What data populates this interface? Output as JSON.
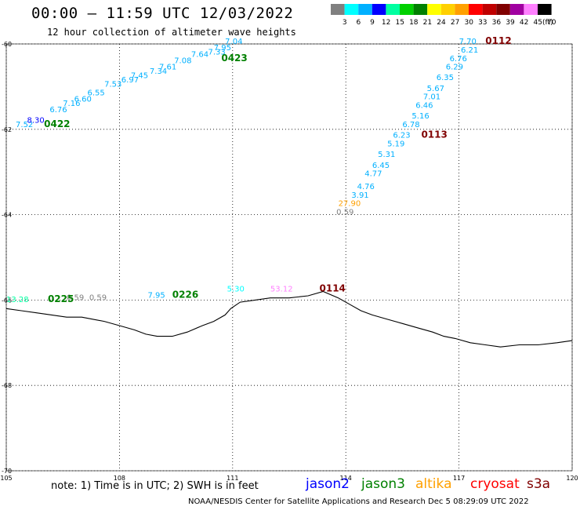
{
  "title": "00:00 – 11:59 UTC 12/03/2022",
  "subtitle": "12 hour collection of altimeter wave heights",
  "legend": {
    "unit": "(ft)",
    "labels": [
      "3",
      "6",
      "9",
      "12",
      "15",
      "18",
      "21",
      "24",
      "27",
      "30",
      "33",
      "36",
      "39",
      "42",
      "45",
      "70"
    ],
    "colors": [
      "#808080",
      "#00ffff",
      "#00b0ff",
      "#0000ff",
      "#00ffa0",
      "#00d000",
      "#008000",
      "#ffff00",
      "#ffd000",
      "#ffa000",
      "#ff0000",
      "#c00000",
      "#800000",
      "#a000a0",
      "#ff80ff",
      "#000000"
    ]
  },
  "map": {
    "lon_range": [
      105,
      120
    ],
    "lat_range": [
      -70,
      -60
    ],
    "lon_ticks": [
      "105",
      "108",
      "111",
      "114",
      "117",
      "120"
    ],
    "lat_ticks": [
      "-60",
      "-62",
      "-64",
      "-66",
      "-68",
      "-70"
    ],
    "grid": "dotted"
  },
  "observations": [
    {
      "text": "7.52",
      "color": "#00b0ff",
      "lon": 105.25,
      "lat": -61.95
    },
    {
      "text": "8.30",
      "color": "#0000ff",
      "lon": 105.55,
      "lat": -61.85
    },
    {
      "text": "6.76",
      "color": "#00b0ff",
      "lon": 106.15,
      "lat": -61.6
    },
    {
      "text": "7.16",
      "color": "#00b0ff",
      "lon": 106.5,
      "lat": -61.45
    },
    {
      "text": "6.60",
      "color": "#00b0ff",
      "lon": 106.8,
      "lat": -61.35
    },
    {
      "text": "6.55",
      "color": "#00b0ff",
      "lon": 107.15,
      "lat": -61.2
    },
    {
      "text": "7.53",
      "color": "#00b0ff",
      "lon": 107.6,
      "lat": -61.0
    },
    {
      "text": "6.97",
      "color": "#00b0ff",
      "lon": 108.05,
      "lat": -60.9
    },
    {
      "text": "7.45",
      "color": "#00b0ff",
      "lon": 108.3,
      "lat": -60.8
    },
    {
      "text": "7.34",
      "color": "#00b0ff",
      "lon": 108.8,
      "lat": -60.7
    },
    {
      "text": "7.61",
      "color": "#00b0ff",
      "lon": 109.05,
      "lat": -60.6
    },
    {
      "text": "7.08",
      "color": "#00b0ff",
      "lon": 109.45,
      "lat": -60.45
    },
    {
      "text": "7.64",
      "color": "#00b0ff",
      "lon": 109.9,
      "lat": -60.3
    },
    {
      "text": "7.33",
      "color": "#00b0ff",
      "lon": 110.35,
      "lat": -60.25
    },
    {
      "text": "7.95",
      "color": "#00b0ff",
      "lon": 110.5,
      "lat": -60.15
    },
    {
      "text": "7.04",
      "color": "#00b0ff",
      "lon": 110.8,
      "lat": -60.0
    },
    {
      "text": "7.70",
      "color": "#00b0ff",
      "lon": 117.0,
      "lat": -60.0
    },
    {
      "text": "6.21",
      "color": "#00b0ff",
      "lon": 117.05,
      "lat": -60.2
    },
    {
      "text": "6.76",
      "color": "#00b0ff",
      "lon": 116.75,
      "lat": -60.4
    },
    {
      "text": "6.29",
      "color": "#00b0ff",
      "lon": 116.65,
      "lat": -60.6
    },
    {
      "text": "6.35",
      "color": "#00b0ff",
      "lon": 116.4,
      "lat": -60.85
    },
    {
      "text": "5.67",
      "color": "#00b0ff",
      "lon": 116.15,
      "lat": -61.1
    },
    {
      "text": "7.01",
      "color": "#00b0ff",
      "lon": 116.05,
      "lat": -61.3
    },
    {
      "text": "6.46",
      "color": "#00b0ff",
      "lon": 115.85,
      "lat": -61.5
    },
    {
      "text": "5.16",
      "color": "#00b0ff",
      "lon": 115.75,
      "lat": -61.75
    },
    {
      "text": "6.78",
      "color": "#00b0ff",
      "lon": 115.5,
      "lat": -61.95
    },
    {
      "text": "6.23",
      "color": "#00b0ff",
      "lon": 115.25,
      "lat": -62.2
    },
    {
      "text": "5.19",
      "color": "#00b0ff",
      "lon": 115.1,
      "lat": -62.4
    },
    {
      "text": "5.31",
      "color": "#00b0ff",
      "lon": 114.85,
      "lat": -62.65
    },
    {
      "text": "6.45",
      "color": "#00b0ff",
      "lon": 114.7,
      "lat": -62.9
    },
    {
      "text": "4.77",
      "color": "#00b0ff",
      "lon": 114.5,
      "lat": -63.1
    },
    {
      "text": "4.76",
      "color": "#00b0ff",
      "lon": 114.3,
      "lat": -63.4
    },
    {
      "text": "3.91",
      "color": "#00b0ff",
      "lon": 114.15,
      "lat": -63.6
    },
    {
      "text": "27.90",
      "color": "#ffa000",
      "lon": 113.8,
      "lat": -63.8
    },
    {
      "text": "0.59",
      "color": "#808080",
      "lon": 113.75,
      "lat": -64.0
    },
    {
      "text": "13.28",
      "color": "#00ffa0",
      "lon": 105.0,
      "lat": -66.05
    },
    {
      "text": "0.59",
      "color": "#808080",
      "lon": 106.6,
      "lat": -66.0
    },
    {
      "text": "0.59",
      "color": "#808080",
      "lon": 107.2,
      "lat": -66.0
    },
    {
      "text": "7.95",
      "color": "#00b0ff",
      "lon": 108.75,
      "lat": -65.95
    },
    {
      "text": "5.30",
      "color": "#00ffff",
      "lon": 110.85,
      "lat": -65.8
    },
    {
      "text": "53.12",
      "color": "#ff80ff",
      "lon": 112.0,
      "lat": -65.8
    }
  ],
  "passes": [
    {
      "text": "0422",
      "color": "#008000",
      "lon": 106.0,
      "lat": -61.95
    },
    {
      "text": "0423",
      "color": "#008000",
      "lon": 110.7,
      "lat": -60.4
    },
    {
      "text": "0112",
      "color": "#800000",
      "lon": 117.7,
      "lat": -60.0
    },
    {
      "text": "0113",
      "color": "#800000",
      "lon": 116.0,
      "lat": -62.2
    },
    {
      "text": "0225",
      "color": "#008000",
      "lon": 106.1,
      "lat": -66.05
    },
    {
      "text": "0226",
      "color": "#008000",
      "lon": 109.4,
      "lat": -65.95
    },
    {
      "text": "0114",
      "color": "#800000",
      "lon": 113.3,
      "lat": -65.8
    }
  ],
  "coastline": [
    [
      105.0,
      -66.2
    ],
    [
      105.4,
      -66.25
    ],
    [
      105.8,
      -66.3
    ],
    [
      106.2,
      -66.35
    ],
    [
      106.6,
      -66.4
    ],
    [
      107.0,
      -66.4
    ],
    [
      107.3,
      -66.45
    ],
    [
      107.6,
      -66.5
    ],
    [
      108.0,
      -66.6
    ],
    [
      108.4,
      -66.7
    ],
    [
      108.7,
      -66.8
    ],
    [
      109.0,
      -66.85
    ],
    [
      109.4,
      -66.85
    ],
    [
      109.8,
      -66.75
    ],
    [
      110.2,
      -66.6
    ],
    [
      110.5,
      -66.5
    ],
    [
      110.8,
      -66.35
    ],
    [
      110.95,
      -66.2
    ],
    [
      111.2,
      -66.05
    ],
    [
      111.6,
      -66.0
    ],
    [
      112.0,
      -65.95
    ],
    [
      112.5,
      -65.95
    ],
    [
      113.0,
      -65.9
    ],
    [
      113.4,
      -65.8
    ],
    [
      113.8,
      -65.95
    ],
    [
      114.1,
      -66.1
    ],
    [
      114.4,
      -66.25
    ],
    [
      114.7,
      -66.35
    ],
    [
      115.1,
      -66.45
    ],
    [
      115.5,
      -66.55
    ],
    [
      115.9,
      -66.65
    ],
    [
      116.3,
      -66.75
    ],
    [
      116.6,
      -66.85
    ],
    [
      116.9,
      -66.9
    ],
    [
      117.3,
      -67.0
    ],
    [
      117.7,
      -67.05
    ],
    [
      118.1,
      -67.1
    ],
    [
      118.6,
      -67.05
    ],
    [
      119.1,
      -67.05
    ],
    [
      119.6,
      -67.0
    ],
    [
      120.0,
      -66.95
    ]
  ],
  "satellites": [
    {
      "name": "jason2",
      "color": "#0000ff"
    },
    {
      "name": "jason3",
      "color": "#008000"
    },
    {
      "name": "altika",
      "color": "#ffa000"
    },
    {
      "name": "cryosat",
      "color": "#ff0000"
    },
    {
      "name": "s3a",
      "color": "#800000"
    }
  ],
  "note": "note: 1) Time is in UTC; 2) SWH is in feet",
  "footer": "NOAA/NESDIS Center for Satellite Applications and Research   Dec  5 08:29:09 UTC 2022"
}
